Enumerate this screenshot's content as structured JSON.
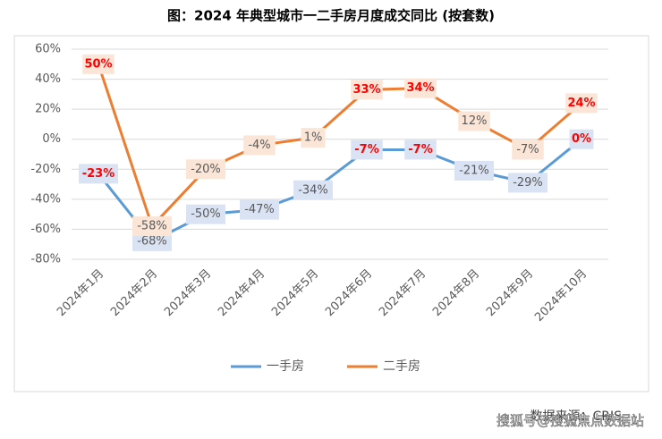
{
  "chart_data": {
    "type": "line",
    "title": "图：2024 年典型城市一二手房月度成交同比 (按套数)",
    "categories": [
      "2024年1月",
      "2024年2月",
      "2024年3月",
      "2024年4月",
      "2024年5月",
      "2024年6月",
      "2024年7月",
      "2024年8月",
      "2024年9月",
      "2024年10月"
    ],
    "series": [
      {
        "name": "一手房",
        "color": "#5b9bd5",
        "values": [
          -23,
          -68,
          -50,
          -47,
          -34,
          -7,
          -7,
          -21,
          -29,
          0
        ],
        "value_labels": [
          "-23%",
          "-68%",
          "-50%",
          "-47%",
          "-34%",
          "-7%",
          "-7%",
          "-21%",
          "-29%",
          "0%"
        ],
        "label_colors": [
          "#ff0000",
          "#595959",
          "#595959",
          "#595959",
          "#595959",
          "#ff0000",
          "#ff0000",
          "#595959",
          "#595959",
          "#ff0000"
        ]
      },
      {
        "name": "二手房",
        "color": "#ed7d31",
        "values": [
          50,
          -58,
          -20,
          -4,
          1,
          33,
          34,
          12,
          -7,
          24
        ],
        "value_labels": [
          "50%",
          "-58%",
          "-20%",
          "-4%",
          "1%",
          "33%",
          "34%",
          "12%",
          "-7%",
          "24%"
        ],
        "label_colors": [
          "#ff0000",
          "#595959",
          "#595959",
          "#595959",
          "#595959",
          "#ff0000",
          "#ff0000",
          "#595959",
          "#595959",
          "#ff0000"
        ]
      }
    ],
    "ylim": [
      -80,
      60
    ],
    "yticks": [
      {
        "value": 60,
        "label": "60%"
      },
      {
        "value": 40,
        "label": "40%"
      },
      {
        "value": 20,
        "label": "20%"
      },
      {
        "value": 0,
        "label": "0%"
      },
      {
        "value": -20,
        "label": "-20%"
      },
      {
        "value": -40,
        "label": "-40%"
      },
      {
        "value": -60,
        "label": "-60%"
      },
      {
        "value": -80,
        "label": "-80%"
      }
    ],
    "grid": true,
    "source": "数据来源：CRIS",
    "watermark": "搜狐号@搜狐焦点数据站"
  }
}
